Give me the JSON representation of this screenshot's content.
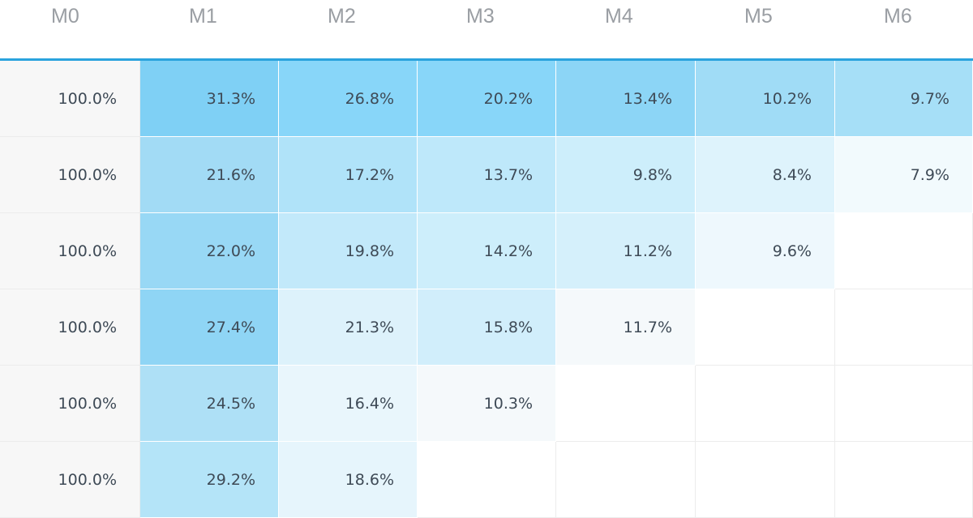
{
  "table": {
    "header": [
      "M0",
      "M1",
      "M2",
      "M3",
      "M4",
      "M5",
      "M6"
    ],
    "rows": [
      [
        "100.0%",
        "31.3%",
        "26.8%",
        "20.2%",
        "13.4%",
        "10.2%",
        "9.7%"
      ],
      [
        "100.0%",
        "21.6%",
        "17.2%",
        "13.7%",
        "9.8%",
        "8.4%",
        "7.9%"
      ],
      [
        "100.0%",
        "22.0%",
        "19.8%",
        "14.2%",
        "11.2%",
        "9.6%"
      ],
      [
        "100.0%",
        "27.4%",
        "21.3%",
        "15.8%",
        "11.7%"
      ],
      [
        "100.0%",
        "24.5%",
        "16.4%",
        "10.3%"
      ],
      [
        "100.0%",
        "29.2%",
        "18.6%"
      ]
    ],
    "cell_colors": [
      [
        "#f7f7f7",
        "#7fd0f5",
        "#88d6f9",
        "#88d6f9",
        "#8cd5f6",
        "#a0dcf6",
        "#a6dff7"
      ],
      [
        "#f7f7f7",
        "#a2dbf5",
        "#b0e3f9",
        "#bee8fa",
        "#cdeefb",
        "#def3fc",
        "#f2fafd"
      ],
      [
        "#f7f7f7",
        "#98d8f5",
        "#c2e9fa",
        "#cdeefb",
        "#d5f0fb",
        "#eef8fd"
      ],
      [
        "#f7f7f7",
        "#8fd5f5",
        "#ddf2fb",
        "#d1eefb",
        "#f5f9fb"
      ],
      [
        "#f7f7f7",
        "#aee0f6",
        "#e9f6fc",
        "#f5f9fb"
      ],
      [
        "#f7f7f7",
        "#b4e4f8",
        "#e6f5fc"
      ]
    ]
  }
}
